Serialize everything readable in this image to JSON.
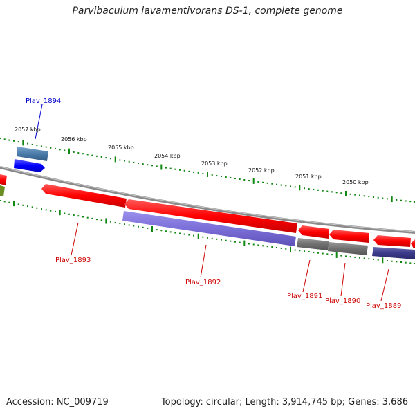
{
  "title": "Parvibaculum lavamentivorans DS-1, complete genome",
  "footer": {
    "accession": "Accession: NC_009719",
    "topology": "Topology: circular; Length: 3,914,745 bp; Genes: 3,686"
  },
  "scale_labels": [
    "2057 kbp",
    "2056 kbp",
    "2055 kbp",
    "2054 kbp",
    "2053 kbp",
    "2052 kbp",
    "2051 kbp",
    "2050 kbp"
  ],
  "genes": [
    {
      "label": "Plav_1894",
      "color": "#0000cc"
    },
    {
      "label": "Plav_1893",
      "color": "#cc0000"
    },
    {
      "label": "Plav_1892",
      "color": "#cc0000"
    },
    {
      "label": "Plav_1891",
      "color": "#cc0000"
    },
    {
      "label": "Plav_1890",
      "color": "#cc0000"
    },
    {
      "label": "Plav_1889",
      "color": "#cc0000"
    }
  ],
  "colors": {
    "backbone": "#8a8a8a",
    "tick": "#118811",
    "cds_red": "#ff0000",
    "cds_purple": "#7b6fd8",
    "cds_gray": "#707070",
    "cds_navy": "#3a3a8a",
    "cds_blue": "#0000ff",
    "cds_steel": "#4a7aa8",
    "cds_olive": "#6b8e23"
  }
}
